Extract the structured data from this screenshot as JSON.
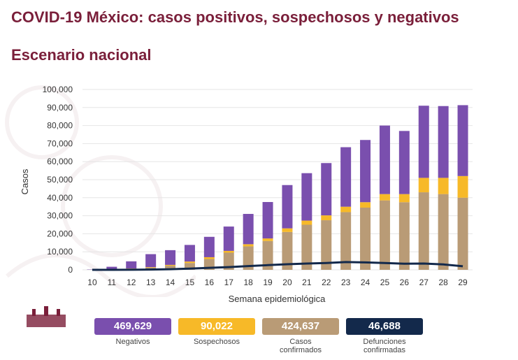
{
  "header": {
    "title": "COVID-19 México: casos positivos, sospechosos y negativos",
    "subtitle": "Escenario nacional"
  },
  "chart_data": {
    "type": "bar",
    "stacked": true,
    "xlabel": "Semana epidemiológica",
    "ylabel": "Casos",
    "ylim": [
      0,
      100000
    ],
    "yticks": [
      "0",
      "10,000",
      "20,000",
      "30,000",
      "40,000",
      "50,000",
      "60,000",
      "70,000",
      "80,000",
      "90,000",
      "100,000"
    ],
    "grid": true,
    "categories": [
      "10",
      "11",
      "12",
      "13",
      "14",
      "15",
      "16",
      "17",
      "18",
      "19",
      "20",
      "21",
      "22",
      "23",
      "24",
      "25",
      "26",
      "27",
      "28",
      "29"
    ],
    "series": [
      {
        "name": "Casos confirmados",
        "color": "#b99b76",
        "values": [
          20,
          200,
          600,
          1200,
          2300,
          3800,
          6000,
          9500,
          13000,
          16000,
          21000,
          25000,
          27500,
          32000,
          34500,
          38500,
          37500,
          43000,
          42000,
          40000
        ]
      },
      {
        "name": "Sospechosos",
        "color": "#f7b928",
        "values": [
          20,
          80,
          150,
          300,
          450,
          800,
          1000,
          1000,
          1200,
          1400,
          2000,
          2300,
          2700,
          3000,
          3000,
          3500,
          4500,
          8000,
          9000,
          12000
        ]
      },
      {
        "name": "Negativos",
        "color": "#7a4fae",
        "values": [
          160,
          1420,
          3950,
          7200,
          8150,
          9200,
          11300,
          13500,
          16800,
          20200,
          24000,
          26300,
          29000,
          33000,
          34500,
          38000,
          35000,
          40000,
          39800,
          39300
        ]
      }
    ],
    "line": {
      "name": "Defunciones confirmadas",
      "color": "#13294b",
      "values": [
        0,
        20,
        60,
        150,
        350,
        700,
        1100,
        1500,
        2100,
        2600,
        3100,
        3500,
        3800,
        4300,
        4100,
        3800,
        3400,
        3500,
        3000,
        2000
      ]
    }
  },
  "legend": [
    {
      "value": "469,629",
      "label": "Negativos",
      "color": "#7a4fae"
    },
    {
      "value": "90,022",
      "label": "Sospechosos",
      "color": "#f7b928"
    },
    {
      "value": "424,637",
      "label": "Casos confirmados",
      "color": "#b99b76"
    },
    {
      "value": "46,688",
      "label": "Defunciones confirmadas",
      "color": "#13294b"
    }
  ]
}
